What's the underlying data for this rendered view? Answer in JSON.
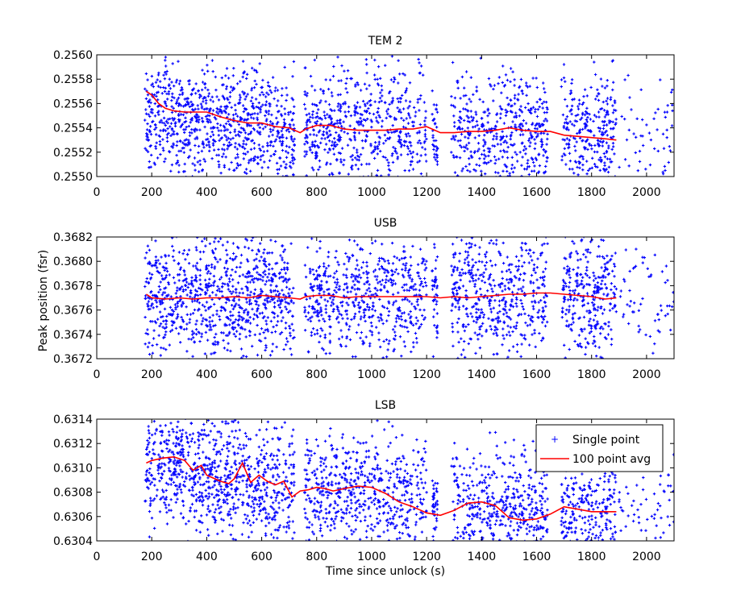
{
  "figure": {
    "ylabel": "Peak position (fsr)",
    "xlabel": "Time since unlock (s)"
  },
  "chart_data": [
    {
      "type": "scatter",
      "title": "TEM 2",
      "xlabel": "",
      "ylabel": "",
      "xlim": [
        0,
        2100
      ],
      "ylim": [
        0.255,
        0.256
      ],
      "x_ticks": [
        0,
        200,
        400,
        600,
        800,
        1000,
        1200,
        1400,
        1600,
        1800,
        2000
      ],
      "y_ticks": [
        0.255,
        0.2552,
        0.2554,
        0.2556,
        0.2558,
        0.256
      ],
      "y_tick_labels": [
        "0.2550",
        "0.2552",
        "0.2554",
        "0.2556",
        "0.2558",
        "0.2560"
      ],
      "grid": false,
      "series": [
        {
          "name": "Single point",
          "mark": "point",
          "color": "#0000ff",
          "clusters": [
            {
              "x_range": [
                175,
                720
              ],
              "center": [
                0.25548,
                0.25538
              ],
              "spread": 0.0003,
              "count": 900
            },
            {
              "x_range": [
                755,
                1200
              ],
              "center": [
                0.25542,
                0.25537
              ],
              "spread": 0.0003,
              "count": 600
            },
            {
              "x_range": [
                1220,
                1240
              ],
              "center": 0.25535,
              "spread": 0.0003,
              "count": 40
            },
            {
              "x_range": [
                1290,
                1640
              ],
              "center": 0.25536,
              "spread": 0.0003,
              "count": 500
            },
            {
              "x_range": [
                1690,
                1890
              ],
              "center": 0.25532,
              "spread": 0.0003,
              "count": 300
            },
            {
              "x_range": [
                1900,
                2100
              ],
              "center": 0.25535,
              "spread": 0.0003,
              "count": 60
            }
          ]
        },
        {
          "name": "100 point avg",
          "mark": "line",
          "color": "#ff0000",
          "x": [
            180,
            200,
            225,
            250,
            280,
            320,
            360,
            400,
            450,
            500,
            550,
            600,
            650,
            700,
            740,
            760,
            800,
            850,
            900,
            950,
            1000,
            1050,
            1100,
            1150,
            1200,
            1250,
            1300,
            1350,
            1400,
            1450,
            1500,
            1550,
            1600,
            1650,
            1700,
            1750,
            1800,
            1850,
            1890
          ],
          "y": [
            0.2557,
            0.25567,
            0.2556,
            0.25556,
            0.25554,
            0.25553,
            0.25553,
            0.25553,
            0.25549,
            0.25546,
            0.25544,
            0.25544,
            0.25541,
            0.2554,
            0.25536,
            0.25539,
            0.25542,
            0.25542,
            0.25539,
            0.25538,
            0.25538,
            0.25538,
            0.25539,
            0.25539,
            0.25541,
            0.25536,
            0.25536,
            0.25537,
            0.25537,
            0.25538,
            0.2554,
            0.25538,
            0.25537,
            0.25537,
            0.25534,
            0.25533,
            0.25532,
            0.25531,
            0.2553
          ]
        }
      ]
    },
    {
      "type": "scatter",
      "title": "USB",
      "xlabel": "",
      "ylabel": "Peak position (fsr)",
      "xlim": [
        0,
        2100
      ],
      "ylim": [
        0.3672,
        0.3682
      ],
      "x_ticks": [
        0,
        200,
        400,
        600,
        800,
        1000,
        1200,
        1400,
        1600,
        1800,
        2000
      ],
      "y_ticks": [
        0.3672,
        0.3674,
        0.3676,
        0.3678,
        0.368,
        0.3682
      ],
      "y_tick_labels": [
        "0.3672",
        "0.3674",
        "0.3676",
        "0.3678",
        "0.3680",
        "0.3682"
      ],
      "grid": false,
      "series": [
        {
          "name": "Single point",
          "mark": "point",
          "color": "#0000ff",
          "clusters": [
            {
              "x_range": [
                175,
                720
              ],
              "center": 0.36771,
              "spread": 0.0003,
              "count": 900
            },
            {
              "x_range": [
                755,
                1200
              ],
              "center": 0.36771,
              "spread": 0.0003,
              "count": 600
            },
            {
              "x_range": [
                1220,
                1240
              ],
              "center": 0.3677,
              "spread": 0.0003,
              "count": 40
            },
            {
              "x_range": [
                1290,
                1640
              ],
              "center": 0.36772,
              "spread": 0.0003,
              "count": 500
            },
            {
              "x_range": [
                1690,
                1890
              ],
              "center": 0.36771,
              "spread": 0.0003,
              "count": 300
            },
            {
              "x_range": [
                1900,
                2100
              ],
              "center": 0.36772,
              "spread": 0.0003,
              "count": 60
            }
          ]
        },
        {
          "name": "100 point avg",
          "mark": "line",
          "color": "#ff0000",
          "x": [
            180,
            200,
            250,
            300,
            350,
            400,
            450,
            500,
            550,
            600,
            650,
            700,
            740,
            760,
            800,
            850,
            900,
            950,
            1000,
            1050,
            1100,
            1150,
            1200,
            1250,
            1300,
            1350,
            1400,
            1450,
            1500,
            1550,
            1600,
            1650,
            1700,
            1750,
            1800,
            1850,
            1890
          ],
          "y": [
            0.36773,
            0.3677,
            0.36769,
            0.3677,
            0.36769,
            0.3677,
            0.3677,
            0.36771,
            0.3677,
            0.36772,
            0.36771,
            0.3677,
            0.36769,
            0.36771,
            0.36772,
            0.36772,
            0.3677,
            0.36771,
            0.36771,
            0.36771,
            0.36771,
            0.36771,
            0.36771,
            0.3677,
            0.36771,
            0.3677,
            0.36771,
            0.36772,
            0.36773,
            0.36773,
            0.36774,
            0.36774,
            0.36773,
            0.36772,
            0.36771,
            0.36769,
            0.3677
          ]
        }
      ]
    },
    {
      "type": "scatter",
      "title": "LSB",
      "xlabel": "Time since unlock (s)",
      "ylabel": "",
      "xlim": [
        0,
        2100
      ],
      "ylim": [
        0.6304,
        0.6314
      ],
      "x_ticks": [
        0,
        200,
        400,
        600,
        800,
        1000,
        1200,
        1400,
        1600,
        1800,
        2000
      ],
      "y_ticks": [
        0.6304,
        0.6306,
        0.6308,
        0.631,
        0.6312,
        0.6314
      ],
      "y_tick_labels": [
        "0.6304",
        "0.6306",
        "0.6308",
        "0.6310",
        "0.6312",
        "0.6314"
      ],
      "grid": false,
      "legend": {
        "position": "top-right",
        "entries": [
          "Single point",
          "100 point avg"
        ]
      },
      "series": [
        {
          "name": "Single point",
          "mark": "point",
          "color": "#0000ff",
          "clusters": [
            {
              "x_range": [
                175,
                720
              ],
              "center": [
                0.63105,
                0.63082
              ],
              "spread": 0.0003,
              "count": 900
            },
            {
              "x_range": [
                755,
                1200
              ],
              "center": [
                0.63083,
                0.63072
              ],
              "spread": 0.0003,
              "count": 600
            },
            {
              "x_range": [
                1220,
                1240
              ],
              "center": 0.63063,
              "spread": 0.0003,
              "count": 40
            },
            {
              "x_range": [
                1290,
                1640
              ],
              "center": 0.63065,
              "spread": 0.0003,
              "count": 500
            },
            {
              "x_range": [
                1690,
                1890
              ],
              "center": 0.63065,
              "spread": 0.0003,
              "count": 300
            },
            {
              "x_range": [
                1900,
                2100
              ],
              "center": 0.63065,
              "spread": 0.0003,
              "count": 60
            }
          ]
        },
        {
          "name": "100 point avg",
          "mark": "line",
          "color": "#ff0000",
          "x": [
            180,
            200,
            240,
            280,
            320,
            350,
            380,
            400,
            420,
            450,
            480,
            500,
            530,
            560,
            590,
            620,
            650,
            680,
            710,
            740,
            770,
            800,
            830,
            860,
            900,
            950,
            1000,
            1050,
            1100,
            1150,
            1200,
            1250,
            1300,
            1350,
            1400,
            1450,
            1500,
            1550,
            1600,
            1650,
            1700,
            1750,
            1800,
            1850,
            1890
          ],
          "y": [
            0.63104,
            0.63106,
            0.63108,
            0.63109,
            0.63106,
            0.63098,
            0.63102,
            0.63094,
            0.63092,
            0.63089,
            0.63087,
            0.63091,
            0.63104,
            0.63088,
            0.63094,
            0.63089,
            0.63086,
            0.63089,
            0.63076,
            0.63081,
            0.63082,
            0.63084,
            0.63083,
            0.63081,
            0.63083,
            0.63085,
            0.63084,
            0.63079,
            0.63072,
            0.63068,
            0.63063,
            0.63061,
            0.63065,
            0.63071,
            0.63072,
            0.63069,
            0.63059,
            0.63057,
            0.63058,
            0.63062,
            0.63068,
            0.63066,
            0.63064,
            0.63064,
            0.63064
          ]
        }
      ]
    }
  ]
}
